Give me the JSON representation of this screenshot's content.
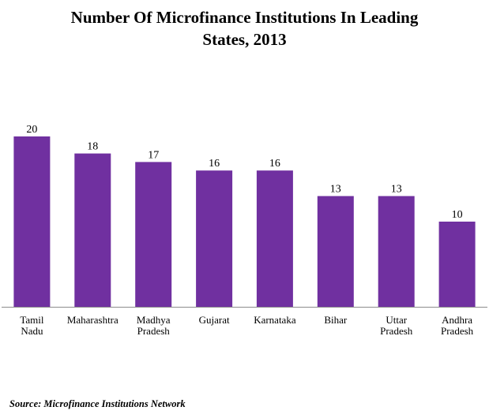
{
  "title_lines": [
    "Number Of Microfinance Institutions  In Leading",
    "States, 2013"
  ],
  "source": "Source: Microfinance Institutions Network",
  "colors": {
    "bar": "#7030a0",
    "axis": "#8c8c8c"
  },
  "chart_data": {
    "type": "bar",
    "title": "Number Of Microfinance Institutions  In Leading States, 2013",
    "categories": [
      [
        "Tamil",
        "Nadu"
      ],
      [
        "Maharashtra"
      ],
      [
        "Madhya",
        "Pradesh"
      ],
      [
        "Gujarat"
      ],
      [
        "Karnataka"
      ],
      [
        "Bihar"
      ],
      [
        "Uttar",
        "Pradesh"
      ],
      [
        "Andhra",
        "Pradesh"
      ]
    ],
    "values": [
      20,
      18,
      17,
      16,
      16,
      13,
      13,
      10
    ],
    "data_labels": [
      "20",
      "18",
      "17",
      "16",
      "16",
      "13",
      "13",
      "10"
    ],
    "ylim": [
      0,
      20
    ],
    "xlabel": "",
    "ylabel": "",
    "grid": false,
    "legend": "none"
  }
}
